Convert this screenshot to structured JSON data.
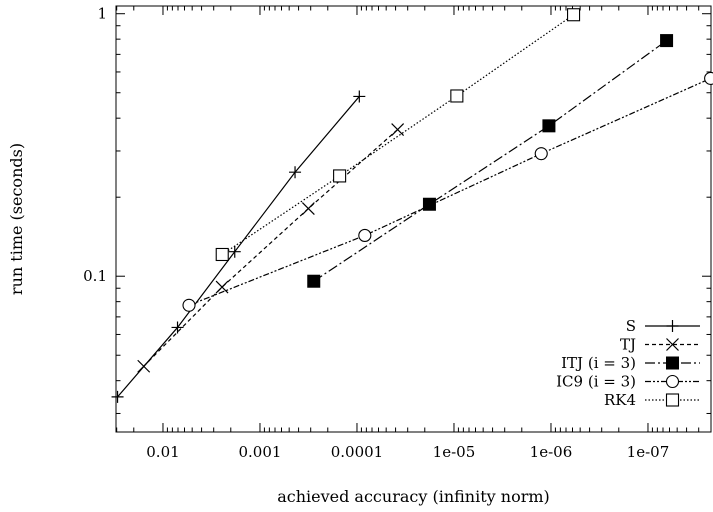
{
  "chart_data": {
    "type": "line",
    "title": "",
    "xlabel": "achieved accuracy (infinity norm)",
    "ylabel": "run time (seconds)",
    "x_scale": "log",
    "x_reversed": true,
    "y_scale": "log",
    "xlim": [
      0.0305,
      2.24e-08
    ],
    "ylim": [
      0.0255,
      1.07
    ],
    "x_ticks": [
      {
        "value": 0.01,
        "label": "0.01"
      },
      {
        "value": 0.001,
        "label": "0.001"
      },
      {
        "value": 0.0001,
        "label": "0.0001"
      },
      {
        "value": 1e-05,
        "label": "1e-05"
      },
      {
        "value": 1e-06,
        "label": "1e-06"
      },
      {
        "value": 1e-07,
        "label": "1e-07"
      }
    ],
    "y_ticks": [
      {
        "value": 0.1,
        "label": "0.1"
      },
      {
        "value": 1,
        "label": "1"
      }
    ],
    "grid": false,
    "legend_position": "bottom-right",
    "series": [
      {
        "name": "S",
        "marker": "plus",
        "dash": "",
        "points": [
          {
            "x": 0.0294,
            "y": 0.0347
          },
          {
            "x": 0.00708,
            "y": 0.0638
          },
          {
            "x": 0.00182,
            "y": 0.124
          },
          {
            "x": 0.000435,
            "y": 0.249
          },
          {
            "x": 9.46e-05,
            "y": 0.484
          }
        ]
      },
      {
        "name": "TJ",
        "marker": "cross",
        "dash": "4,3",
        "points": [
          {
            "x": 0.0158,
            "y": 0.0454
          },
          {
            "x": 0.00246,
            "y": 0.0909
          },
          {
            "x": 0.000317,
            "y": 0.181
          },
          {
            "x": 3.81e-05,
            "y": 0.362
          }
        ]
      },
      {
        "name": "ITJ (i = 3)",
        "marker": "filled-square",
        "dash": "10,3,2,3",
        "points": [
          {
            "x": 0.000279,
            "y": 0.0957
          },
          {
            "x": 1.79e-05,
            "y": 0.188
          },
          {
            "x": 1.05e-06,
            "y": 0.374
          },
          {
            "x": 6.43e-08,
            "y": 0.79
          }
        ]
      },
      {
        "name": "IC9 (i = 3)",
        "marker": "circle",
        "dash": "6,2,2,2,2,2",
        "points": [
          {
            "x": 0.00539,
            "y": 0.0775
          },
          {
            "x": 8.3e-05,
            "y": 0.143
          },
          {
            "x": 1.26e-06,
            "y": 0.293
          },
          {
            "x": 2.26e-08,
            "y": 0.567
          }
        ]
      },
      {
        "name": "RK4",
        "marker": "square",
        "dash": "1.5,2",
        "points": [
          {
            "x": 0.00245,
            "y": 0.121
          },
          {
            "x": 0.000151,
            "y": 0.241
          },
          {
            "x": 9.34e-06,
            "y": 0.486
          },
          {
            "x": 5.85e-07,
            "y": 0.991
          }
        ]
      }
    ],
    "legend_labels": [
      "S",
      "TJ",
      "ITJ (i = 3)",
      "IC9 (i = 3)",
      "RK4"
    ]
  }
}
